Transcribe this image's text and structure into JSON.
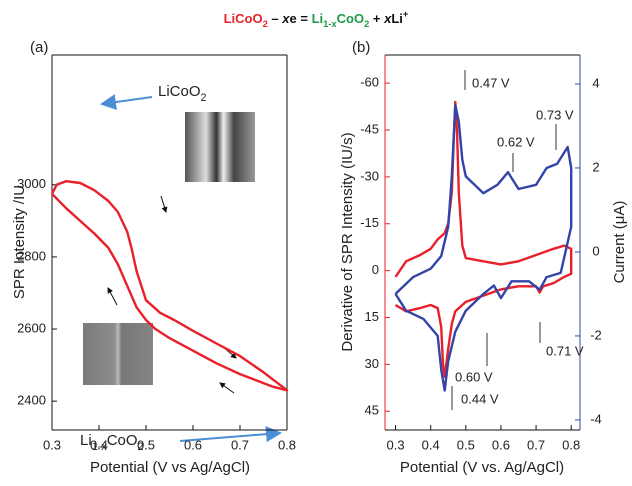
{
  "title": {
    "segments": [
      {
        "text": "LiCoO",
        "color": "#e8202a"
      },
      {
        "text": "2",
        "color": "#e8202a",
        "sub": true
      },
      {
        "text": " – ",
        "color": "#111111"
      },
      {
        "text": "x",
        "color": "#111111",
        "italic": true
      },
      {
        "text": "e = ",
        "color": "#111111"
      },
      {
        "text": "Li",
        "color": "#1a9b48"
      },
      {
        "text": "1-x",
        "color": "#1a9b48",
        "sub": true
      },
      {
        "text": "CoO",
        "color": "#1a9b48"
      },
      {
        "text": "2",
        "color": "#1a9b48",
        "sub": true
      },
      {
        "text": " + ",
        "color": "#111111"
      },
      {
        "text": "x",
        "color": "#111111",
        "italic": true
      },
      {
        "text": "Li",
        "color": "#111111"
      },
      {
        "text": "+",
        "color": "#111111",
        "sup": true
      }
    ]
  },
  "chart_data": [
    {
      "type": "line",
      "panel_label": "(a)",
      "xlabel": "Potential (V vs Ag/AgCl)",
      "ylabel": "SPR Intensity /IU",
      "xlim": [
        0.3,
        0.8
      ],
      "xticks": [
        0.3,
        0.4,
        0.5,
        0.6,
        0.7,
        0.8
      ],
      "ylim": [
        2320,
        3360
      ],
      "yticks": [
        2400,
        2600,
        2800,
        3000
      ],
      "series": [
        {
          "color": "#e8202a",
          "x": [
            0.3,
            0.31,
            0.33,
            0.36,
            0.39,
            0.42,
            0.44,
            0.46,
            0.47,
            0.48,
            0.5,
            0.53,
            0.56,
            0.6,
            0.65,
            0.7,
            0.75,
            0.78,
            0.8,
            0.77,
            0.73,
            0.7,
            0.65,
            0.6,
            0.55,
            0.52,
            0.5,
            0.48,
            0.46,
            0.44,
            0.42,
            0.39,
            0.36,
            0.33,
            0.3
          ],
          "values": [
            2975,
            3000,
            3010,
            3005,
            2985,
            2955,
            2925,
            2870,
            2820,
            2760,
            2680,
            2645,
            2625,
            2595,
            2560,
            2525,
            2480,
            2450,
            2430,
            2440,
            2460,
            2475,
            2505,
            2540,
            2575,
            2600,
            2625,
            2660,
            2720,
            2780,
            2825,
            2865,
            2900,
            2935,
            2975
          ]
        }
      ],
      "annotations": [
        {
          "segments": [
            {
              "text": "LiCoO"
            },
            {
              "text": "2",
              "sub": true
            }
          ]
        },
        {
          "segments": [
            {
              "text": "Li"
            },
            {
              "text": "1-x",
              "sub": true
            },
            {
              "text": "CoO"
            },
            {
              "text": "2",
              "sub": true
            }
          ]
        }
      ]
    },
    {
      "type": "line",
      "panel_label": "(b)",
      "xlabel": "Potential (V vs. Ag/AgCl)",
      "ylabel": "Derivative of SPR Intensity (IU/s)",
      "ycolor": "#e8202a",
      "y2label": "Current (μA)",
      "y2color": "#3344a8",
      "xlim": [
        0.27,
        0.825
      ],
      "xticks": [
        0.3,
        0.4,
        0.5,
        0.6,
        0.7,
        0.8
      ],
      "ylim": [
        51,
        -69
      ],
      "yticks": [
        -60,
        -45,
        -30,
        -15,
        0,
        15,
        30,
        45
      ],
      "y2lim": [
        -4.24,
        4.69
      ],
      "y2ticks": [
        -4,
        -2,
        0,
        2,
        4
      ],
      "series": [
        {
          "color": "#e8202a",
          "x": [
            0.3,
            0.33,
            0.37,
            0.4,
            0.42,
            0.44,
            0.45,
            0.46,
            0.465,
            0.47,
            0.475,
            0.48,
            0.49,
            0.5,
            0.55,
            0.6,
            0.65,
            0.7,
            0.75,
            0.78,
            0.8,
            0.8,
            0.78,
            0.75,
            0.72,
            0.71,
            0.7,
            0.65,
            0.6,
            0.55,
            0.5,
            0.47,
            0.46,
            0.45,
            0.44,
            0.435,
            0.43,
            0.42,
            0.4,
            0.37,
            0.33,
            0.3
          ],
          "values": [
            2,
            -3,
            -5,
            -7,
            -10,
            -12,
            -15,
            -25,
            -40,
            -54,
            -45,
            -25,
            -8,
            -4,
            -3,
            -2,
            -3,
            -5,
            -7,
            -8,
            -7,
            1,
            2,
            4,
            5,
            7,
            5,
            5,
            6,
            8,
            10,
            13,
            17,
            25,
            34,
            30,
            18,
            12,
            11,
            12,
            13,
            11
          ]
        },
        {
          "color": "#3344a8",
          "axis": "y2",
          "x": [
            0.3,
            0.35,
            0.4,
            0.43,
            0.45,
            0.46,
            0.47,
            0.48,
            0.49,
            0.5,
            0.55,
            0.59,
            0.62,
            0.65,
            0.7,
            0.73,
            0.76,
            0.79,
            0.8,
            0.8,
            0.77,
            0.73,
            0.71,
            0.68,
            0.63,
            0.6,
            0.58,
            0.55,
            0.5,
            0.47,
            0.45,
            0.44,
            0.43,
            0.42,
            0.38,
            0.33,
            0.3
          ],
          "values": [
            -1.0,
            -0.6,
            -0.4,
            -0.1,
            0.6,
            1.8,
            3.5,
            3.1,
            2.2,
            1.8,
            1.4,
            1.6,
            1.9,
            1.5,
            1.6,
            2.0,
            2.1,
            2.5,
            2.0,
            0.6,
            -0.5,
            -0.6,
            -0.9,
            -0.7,
            -0.7,
            -1.1,
            -0.8,
            -1.0,
            -1.4,
            -1.9,
            -2.6,
            -3.3,
            -2.8,
            -2.0,
            -1.6,
            -1.4,
            -1.0
          ]
        }
      ],
      "annotations": [
        {
          "text": "0.47 V"
        },
        {
          "text": "0.62 V"
        },
        {
          "text": "0.73 V"
        },
        {
          "text": "0.60 V"
        },
        {
          "text": "0.71 V"
        },
        {
          "text": "0.44 V"
        }
      ]
    }
  ]
}
